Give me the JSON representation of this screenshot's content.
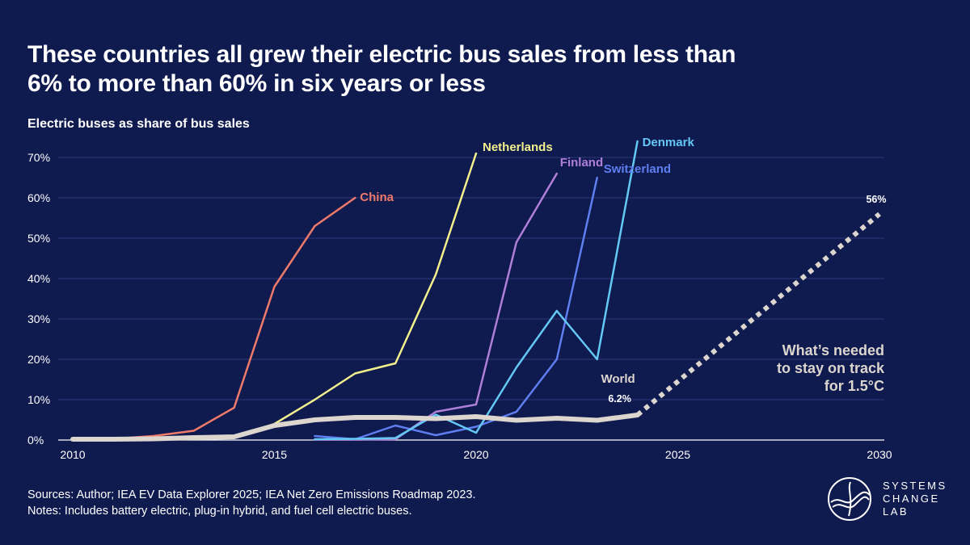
{
  "title": "These countries all grew their electric bus sales from less than 6% to more than 60% in six years or less",
  "subtitle": "Electric buses as share of bus sales",
  "footer": {
    "sources": "Sources: Author; IEA EV Data Explorer 2025; IEA Net Zero Emissions Roadmap 2023.",
    "notes": "Notes: Includes battery electric, plug-in hybrid, and fuel cell electric buses."
  },
  "logo": {
    "line1": "SYSTEMS",
    "line2": "CHANGE",
    "line3": "LAB",
    "icon": "systems-change-lab-logo-icon"
  },
  "chart_data": {
    "type": "line",
    "title": "Electric buses as share of bus sales",
    "xlabel": "",
    "ylabel": "",
    "xlim": [
      2010,
      2030
    ],
    "ylim": [
      0,
      70
    ],
    "x_ticks": [
      2010,
      2015,
      2020,
      2025,
      2030
    ],
    "x_tick_labels": [
      "2010",
      "2015",
      "2020",
      "2025",
      "2030"
    ],
    "y_ticks": [
      0,
      10,
      20,
      30,
      40,
      50,
      60,
      70
    ],
    "y_tick_labels": [
      "0%",
      "10%",
      "20%",
      "30%",
      "40%",
      "50%",
      "60%",
      "70%"
    ],
    "grid": true,
    "series": [
      {
        "name": "China",
        "label": "China",
        "color": "#f07a6a",
        "points": [
          [
            2010,
            0.1
          ],
          [
            2011,
            0.3
          ],
          [
            2012,
            1
          ],
          [
            2013,
            2.3
          ],
          [
            2014,
            8
          ],
          [
            2015,
            38
          ],
          [
            2016,
            53
          ],
          [
            2017,
            60
          ]
        ]
      },
      {
        "name": "Netherlands",
        "label": "Netherlands",
        "color": "#f1f08c",
        "points": [
          [
            2013,
            0.3
          ],
          [
            2014,
            0.7
          ],
          [
            2015,
            4
          ],
          [
            2016,
            10
          ],
          [
            2017,
            16.5
          ],
          [
            2018,
            19
          ],
          [
            2019,
            41
          ],
          [
            2020,
            71
          ]
        ]
      },
      {
        "name": "Finland",
        "label": "Finland",
        "color": "#b07fd8",
        "points": [
          [
            2016,
            0.1
          ],
          [
            2017,
            0.1
          ],
          [
            2018,
            0.2
          ],
          [
            2019,
            7
          ],
          [
            2020,
            8.8
          ],
          [
            2021,
            49
          ],
          [
            2022,
            66
          ]
        ]
      },
      {
        "name": "Switzerland",
        "label": "Switzerland",
        "color": "#5f7ef0",
        "points": [
          [
            2016,
            1
          ],
          [
            2017,
            0.2
          ],
          [
            2018,
            3.6
          ],
          [
            2019,
            1.2
          ],
          [
            2020,
            3.3
          ],
          [
            2021,
            7
          ],
          [
            2022,
            20
          ],
          [
            2023,
            65
          ]
        ]
      },
      {
        "name": "Denmark",
        "label": "Denmark",
        "color": "#64c8f5",
        "points": [
          [
            2016,
            0.2
          ],
          [
            2017,
            0.3
          ],
          [
            2018,
            0.5
          ],
          [
            2019,
            6.3
          ],
          [
            2020,
            1.8
          ],
          [
            2021,
            18
          ],
          [
            2022,
            32
          ],
          [
            2023,
            20
          ],
          [
            2024,
            74
          ]
        ]
      },
      {
        "name": "World",
        "label": "World",
        "color": "#dcd6cf",
        "points": [
          [
            2010,
            0.2
          ],
          [
            2011,
            0.2
          ],
          [
            2012,
            0.3
          ],
          [
            2013,
            0.6
          ],
          [
            2014,
            0.8
          ],
          [
            2015,
            3.6
          ],
          [
            2016,
            5
          ],
          [
            2017,
            5.6
          ],
          [
            2018,
            5.6
          ],
          [
            2019,
            5.3
          ],
          [
            2020,
            5.8
          ],
          [
            2021,
            4.9
          ],
          [
            2022,
            5.4
          ],
          [
            2023,
            4.9
          ],
          [
            2024,
            6.2
          ]
        ]
      }
    ],
    "projection": {
      "name": "What's needed to stay on track for 1.5°C",
      "style": "dotted",
      "color": "#dcd6cf",
      "points": [
        [
          2024,
          6.2
        ],
        [
          2030,
          56
        ]
      ]
    },
    "annotations": {
      "world_end": "6.2%",
      "target_end": "56%",
      "target_line1": "What’s needed",
      "target_line2": "to stay on track",
      "target_line3": "for 1.5°C"
    }
  }
}
